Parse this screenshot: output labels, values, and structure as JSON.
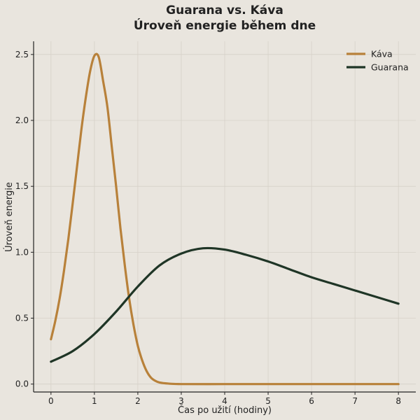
{
  "chart_data": {
    "type": "line",
    "title": "Guarana vs. Káva",
    "subtitle": "Úroveň energie během dne",
    "xlabel": "Čas po užití (hodiny)",
    "ylabel": "Úroveň energie",
    "xlim": [
      -0.4,
      8.4
    ],
    "ylim": [
      -0.06,
      2.6
    ],
    "xticks": [
      0,
      1,
      2,
      3,
      4,
      5,
      6,
      7,
      8
    ],
    "yticks": [
      0.0,
      0.5,
      1.0,
      1.5,
      2.0,
      2.5
    ],
    "grid": true,
    "legend_position": "top-right",
    "series": [
      {
        "name": "Káva",
        "color": "#b8813a",
        "x": [
          0,
          0.1,
          0.2,
          0.3,
          0.4,
          0.5,
          0.6,
          0.7,
          0.8,
          0.9,
          1.0,
          1.1,
          1.2,
          1.3,
          1.4,
          1.5,
          1.6,
          1.7,
          1.8,
          1.9,
          2.0,
          2.1,
          2.2,
          2.3,
          2.4,
          2.5,
          2.7,
          3.0,
          4.0,
          5.0,
          6.0,
          7.0,
          8.0
        ],
        "y": [
          0.34,
          0.48,
          0.65,
          0.86,
          1.1,
          1.37,
          1.65,
          1.93,
          2.17,
          2.37,
          2.49,
          2.48,
          2.3,
          2.1,
          1.8,
          1.5,
          1.18,
          0.9,
          0.65,
          0.45,
          0.29,
          0.18,
          0.1,
          0.05,
          0.025,
          0.012,
          0.004,
          0.0,
          0.0,
          0.0,
          0.0,
          0.0,
          0.0
        ]
      },
      {
        "name": "Guarana",
        "color": "#1f3526",
        "x": [
          0,
          0.5,
          1.0,
          1.5,
          2.0,
          2.5,
          3.0,
          3.5,
          4.0,
          4.5,
          5.0,
          5.5,
          6.0,
          6.5,
          7.0,
          7.5,
          8.0
        ],
        "y": [
          0.17,
          0.25,
          0.38,
          0.55,
          0.74,
          0.9,
          0.99,
          1.03,
          1.02,
          0.98,
          0.93,
          0.87,
          0.81,
          0.76,
          0.71,
          0.66,
          0.61
        ]
      }
    ]
  }
}
